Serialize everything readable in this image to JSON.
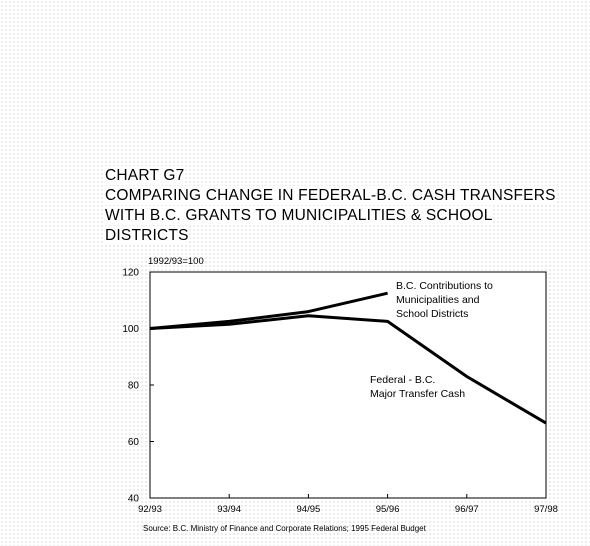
{
  "chart": {
    "id_label": "CHART G7",
    "title_lines": [
      "COMPARING CHANGE IN FEDERAL-B.C. CASH TRANSFERS",
      "WITH B.C. GRANTS TO MUNICIPALITIES & SCHOOL",
      "DISTRICTS"
    ],
    "source": "Source:  B.C. Ministry of Finance and Corporate Relations; 1995 Federal Budget"
  },
  "chart_data": {
    "type": "line",
    "ylabel": "1992/93=100",
    "xlabel": "",
    "ylim": [
      40,
      120
    ],
    "yticks": [
      40,
      60,
      80,
      100,
      120
    ],
    "categories": [
      "92/93",
      "93/94",
      "94/95",
      "95/96",
      "96/97",
      "97/98"
    ],
    "grid": false,
    "legend": "inline annotations",
    "series": [
      {
        "name": "B.C. Contributions to Municipalities and School Districts",
        "label_lines": [
          "B.C. Contributions to",
          "Municipalities and",
          "School Districts"
        ],
        "values": [
          100,
          102.5,
          106,
          112.5,
          null,
          null
        ],
        "color": "#000000"
      },
      {
        "name": "Federal - B.C. Major Transfer Cash",
        "label_lines": [
          "Federal - B.C.",
          "Major Transfer Cash"
        ],
        "values": [
          100,
          101.5,
          104.5,
          102.5,
          83,
          66.5
        ],
        "color": "#000000"
      }
    ]
  }
}
